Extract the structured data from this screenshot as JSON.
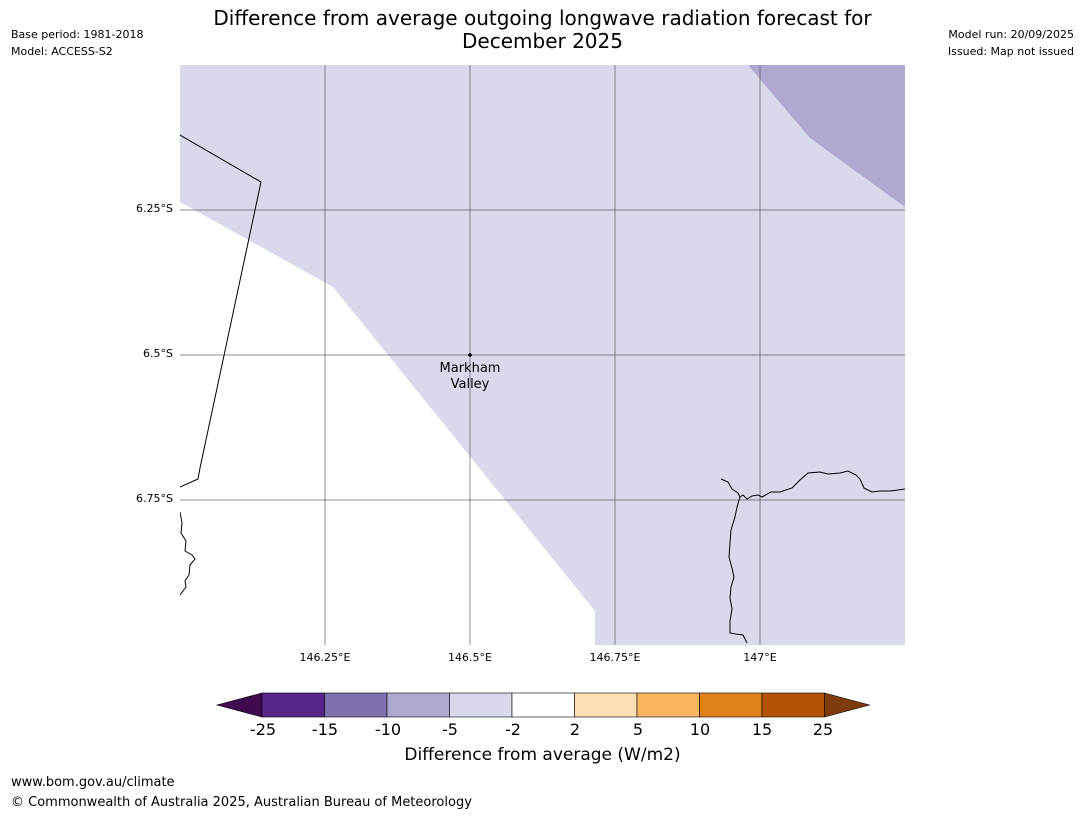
{
  "title_line1": "Difference from average outgoing longwave radiation forecast for",
  "title_line2": "December 2025",
  "meta_left": {
    "base_period": "Base period: 1981-2018",
    "model": "Model: ACCESS-S2"
  },
  "meta_right": {
    "model_run": "Model run: 20/09/2025",
    "issued": "Issued: Map not issued"
  },
  "map": {
    "extent": {
      "lon_min": 146.0,
      "lon_max": 147.25,
      "lat_top": -6.0,
      "lat_bottom": -7.0
    },
    "lat_labels": [
      "6.25°S",
      "6.5°S",
      "6.75°S"
    ],
    "lon_labels": [
      "146.25°E",
      "146.5°E",
      "146.75°E",
      "147°E"
    ],
    "place": {
      "name_line1": "Markham",
      "name_line2": "Valley",
      "lon": 146.5,
      "lat": -6.5
    }
  },
  "legend": {
    "title": "Difference from average (W/m2)",
    "ticks": [
      "-25",
      "-15",
      "-10",
      "-5",
      "-2",
      "2",
      "5",
      "10",
      "15",
      "25"
    ],
    "colors": [
      "#3f0a4f",
      "#56248a",
      "#8170ae",
      "#b0a8d1",
      "#d8d9ea",
      "#ffffff",
      "#fddfb4",
      "#fab55e",
      "#e1801a",
      "#b25306",
      "#7e3b0b"
    ]
  },
  "footer": {
    "url": "www.bom.gov.au/climate",
    "copyright": "© Commonwealth of Australia 2025, Australian Bureau of Meteorology"
  }
}
